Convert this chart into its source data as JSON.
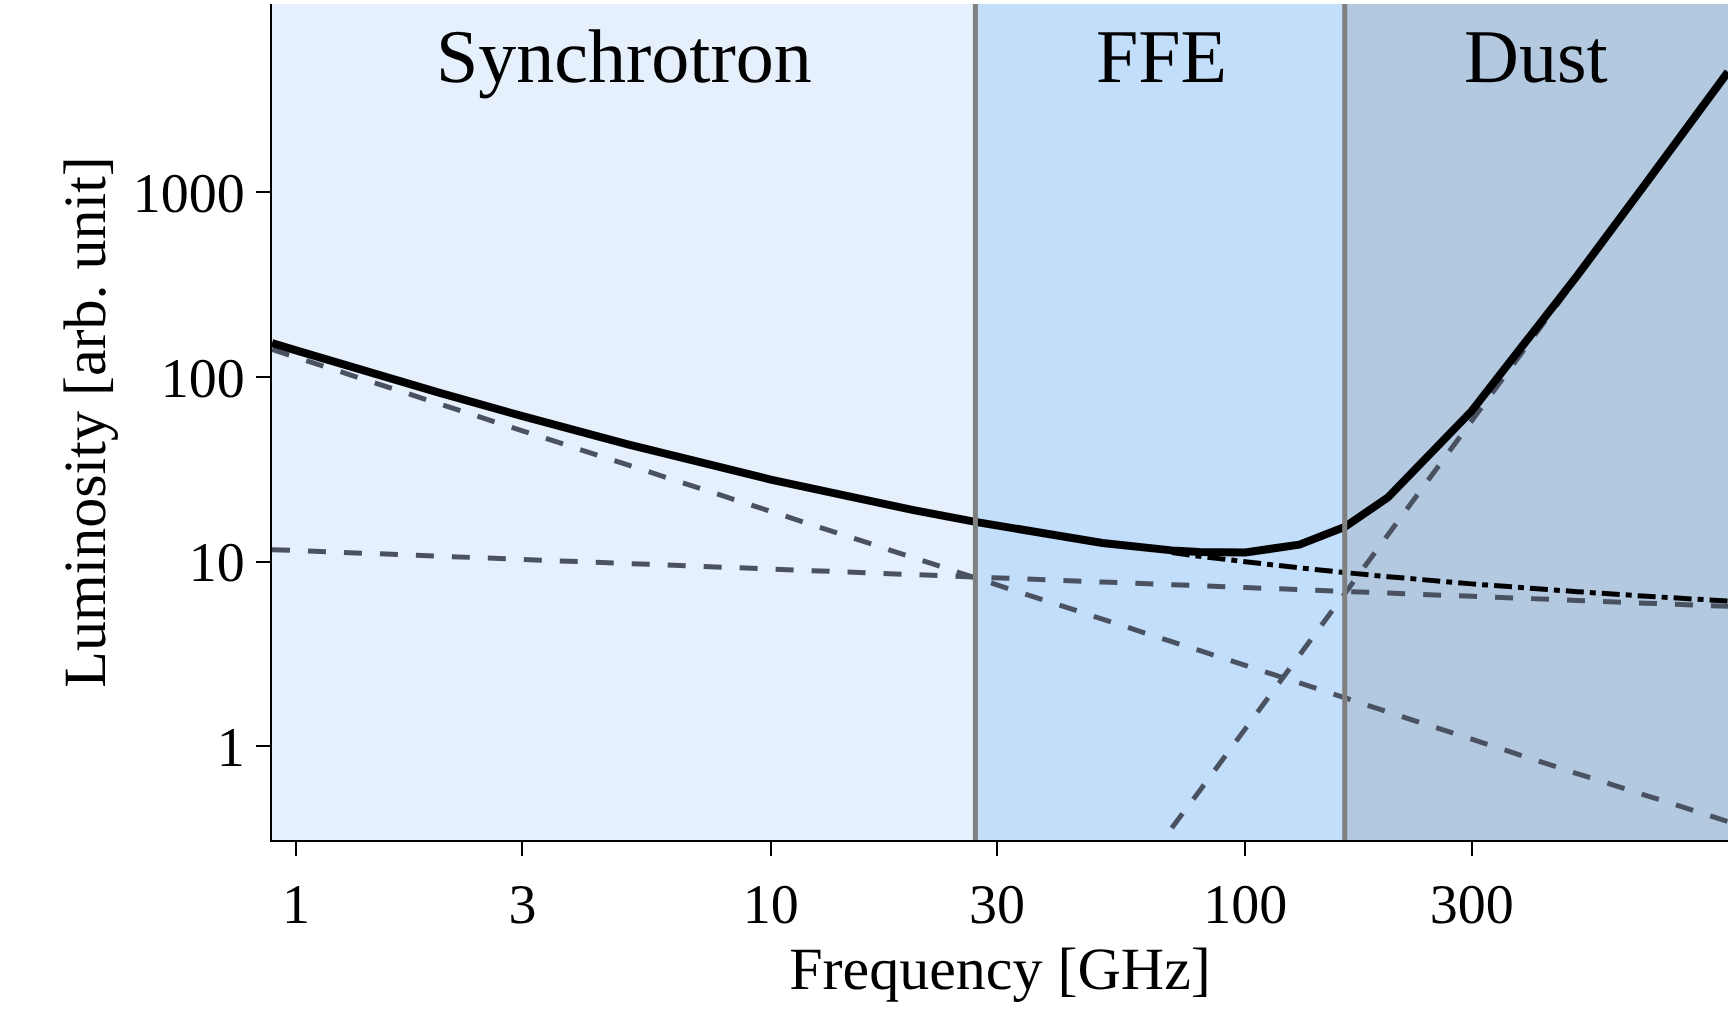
{
  "chart_data": {
    "type": "line",
    "xlabel": "Frequency [GHz]",
    "ylabel": "Luminosity [arb. unit]",
    "x": [
      0.89,
      1,
      2,
      3,
      5,
      10,
      20,
      27,
      50,
      70,
      80,
      100,
      130,
      162,
      200,
      300,
      500,
      700,
      1040
    ],
    "series": [
      {
        "color": "#4a5262",
        "line_style": "dashed",
        "values": [
          141,
          127.9,
          71.7,
          51.1,
          33.4,
          18.7,
          10.5,
          8.16,
          4.88,
          3.68,
          3.3,
          2.74,
          2.2,
          1.83,
          1.53,
          1.09,
          0.71,
          0.54,
          0.39
        ]
      },
      {
        "color": "#4a5262",
        "line_style": "dashed",
        "values": [
          11.6,
          11.47,
          10.7,
          10.27,
          9.76,
          9.11,
          8.5,
          8.25,
          7.75,
          7.5,
          7.4,
          7.23,
          7.05,
          6.89,
          6.75,
          6.48,
          6.16,
          5.95,
          5.72
        ]
      },
      {
        "color": "#4a5262",
        "line_style": "dashed",
        "values": [
          null,
          null,
          null,
          null,
          null,
          null,
          null,
          null,
          null,
          0.36,
          0.57,
          1.24,
          3.1,
          6.7,
          14.0,
          57.9,
          346,
          1124,
          4490
        ]
      },
      {
        "color": "#000000",
        "line_style": "dashdot",
        "values": [
          null,
          null,
          null,
          null,
          null,
          null,
          null,
          null,
          null,
          11.18,
          10.7,
          9.97,
          9.25,
          8.72,
          8.28,
          7.57,
          6.87,
          6.49,
          6.11
        ]
      },
      {
        "color": "#000000",
        "line_style": "solid",
        "values": [
          152.6,
          139.4,
          82.4,
          61.4,
          43.2,
          27.8,
          19.0,
          16.4,
          12.6,
          11.5,
          11.27,
          11.21,
          12.35,
          15.4,
          22.3,
          65.5,
          353,
          1130,
          4496
        ]
      }
    ],
    "log": "xy",
    "xlim": [
      0.89,
      1040
    ],
    "ylim": [
      0.31,
      10500
    ],
    "xticks": [
      1,
      3,
      10,
      30,
      100,
      300
    ],
    "yticks": [
      1,
      10,
      100,
      1000
    ],
    "grid": false,
    "marker": "none",
    "bands": [
      {
        "axis": "x",
        "from": 0.89,
        "to": 27,
        "label": "Synchrotron",
        "color": "#e6f0fc"
      },
      {
        "axis": "x",
        "from": 27,
        "to": 162,
        "label": "FFE",
        "color": "#c2defa"
      },
      {
        "axis": "x",
        "from": 162,
        "to": 1040,
        "label": "Dust",
        "color": "#b3c9e0"
      }
    ],
    "ref_lines": [
      {
        "axis": "x",
        "value": 27,
        "color": "#808080"
      },
      {
        "axis": "x",
        "value": 162,
        "color": "#808080"
      }
    ]
  }
}
